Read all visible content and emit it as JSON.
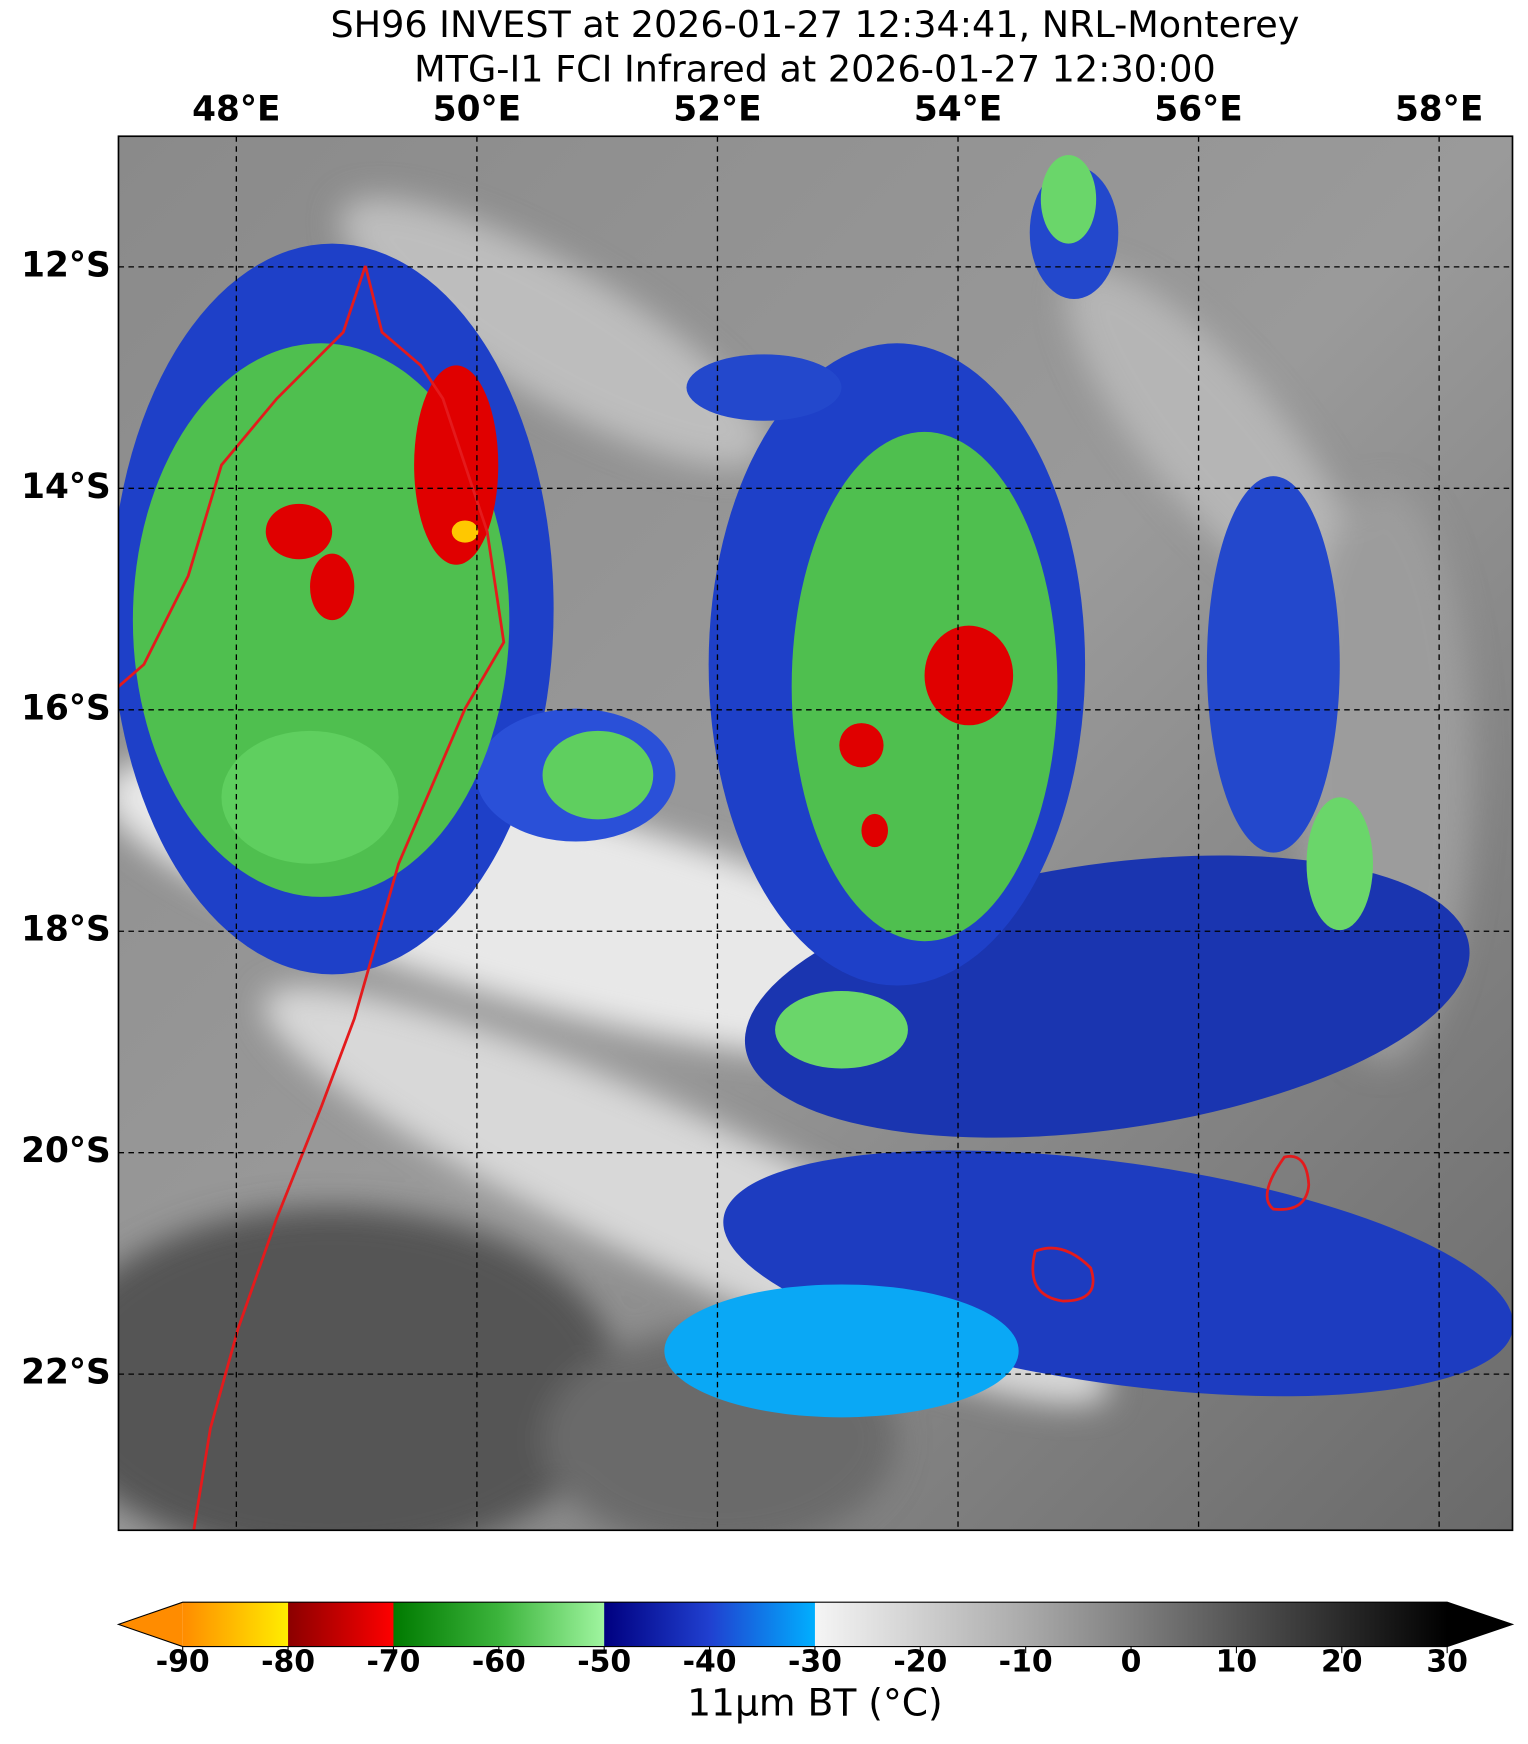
{
  "header": {
    "title": "SH96 INVEST at 2026-01-27 12:34:41, NRL-Monterey",
    "subtitle": "MTG-I1 FCI Infrared at 2026-01-27 12:30:00"
  },
  "map": {
    "xlim": [
      47.02,
      58.61
    ],
    "ylim": [
      -23.41,
      -10.82
    ],
    "xticks": [
      {
        "value": 48,
        "label": "48°E"
      },
      {
        "value": 50,
        "label": "50°E"
      },
      {
        "value": 52,
        "label": "52°E"
      },
      {
        "value": 54,
        "label": "54°E"
      },
      {
        "value": 56,
        "label": "56°E"
      },
      {
        "value": 58,
        "label": "58°E"
      }
    ],
    "yticks": [
      {
        "value": -12,
        "label": "12°S"
      },
      {
        "value": -14,
        "label": "14°S"
      },
      {
        "value": -16,
        "label": "16°S"
      },
      {
        "value": -18,
        "label": "18°S"
      },
      {
        "value": -20,
        "label": "20°S"
      },
      {
        "value": -22,
        "label": "22°S"
      }
    ],
    "grid": true,
    "coastline_color": "#e41a1c"
  },
  "colorbar": {
    "label": "11μm BT (°C)",
    "lim": [
      -90,
      30
    ],
    "ticks": [
      -90,
      -80,
      -70,
      -60,
      -50,
      -40,
      -30,
      -20,
      -10,
      0,
      10,
      20,
      30
    ],
    "band_colors": [
      [
        "#ff8c00",
        "#ffee00"
      ],
      [
        "#8b0000",
        "#ff0000"
      ],
      [
        "#007a00",
        "#3cb43c"
      ],
      [
        "#3cb43c",
        "#a0f5a0"
      ],
      [
        "#000080",
        "#2040d0"
      ],
      [
        "#2040d0",
        "#00b0ff"
      ],
      [
        "#f5f5f5",
        "#d0d0d0"
      ],
      [
        "#d0d0d0",
        "#aaaaaa"
      ],
      [
        "#aaaaaa",
        "#808080"
      ],
      [
        "#808080",
        "#555555"
      ],
      [
        "#555555",
        "#2a2a2a"
      ],
      [
        "#2a2a2a",
        "#000000"
      ]
    ],
    "extend_colors": [
      "#ff8c00",
      "#000000"
    ]
  }
}
